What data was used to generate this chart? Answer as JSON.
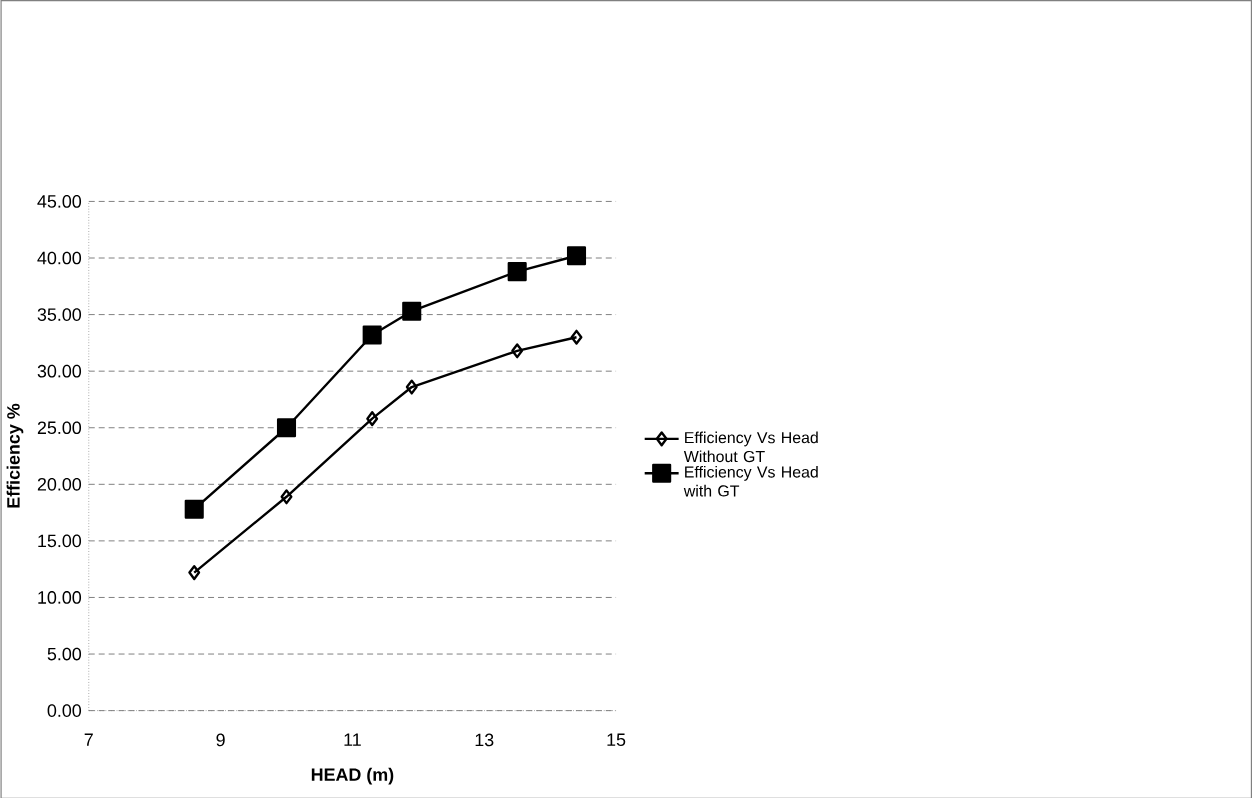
{
  "chart_data": {
    "type": "line",
    "xlabel": "HEAD (m)",
    "ylabel": "Efficiency %",
    "xlim": [
      7,
      15
    ],
    "xticks": [
      7,
      9,
      11,
      13,
      15
    ],
    "ylim": [
      0,
      45
    ],
    "yticks": [
      {
        "value": 0,
        "label": "0.00"
      },
      {
        "value": 5,
        "label": "5.00"
      },
      {
        "value": 10,
        "label": "10.00"
      },
      {
        "value": 15,
        "label": "15.00"
      },
      {
        "value": 20,
        "label": "20.00"
      },
      {
        "value": 25,
        "label": "25.00"
      },
      {
        "value": 30,
        "label": "30.00"
      },
      {
        "value": 35,
        "label": "35.00"
      },
      {
        "value": 40,
        "label": "40.00"
      },
      {
        "value": 45,
        "label": "45.00"
      }
    ],
    "grid": "y",
    "legend": "right",
    "x": [
      8.6,
      10.0,
      11.3,
      11.9,
      13.5,
      14.4
    ],
    "series": [
      {
        "name": "Efficiency Vs Head Without GT",
        "color": "#000000",
        "marker": "diamond",
        "values": [
          12.2,
          18.9,
          25.8,
          28.6,
          31.8,
          33.0
        ]
      },
      {
        "name": "Efficiency Vs Head with GT",
        "color": "#000000",
        "marker": "square",
        "values": [
          17.8,
          25.0,
          33.2,
          35.3,
          38.8,
          40.2
        ]
      }
    ]
  }
}
